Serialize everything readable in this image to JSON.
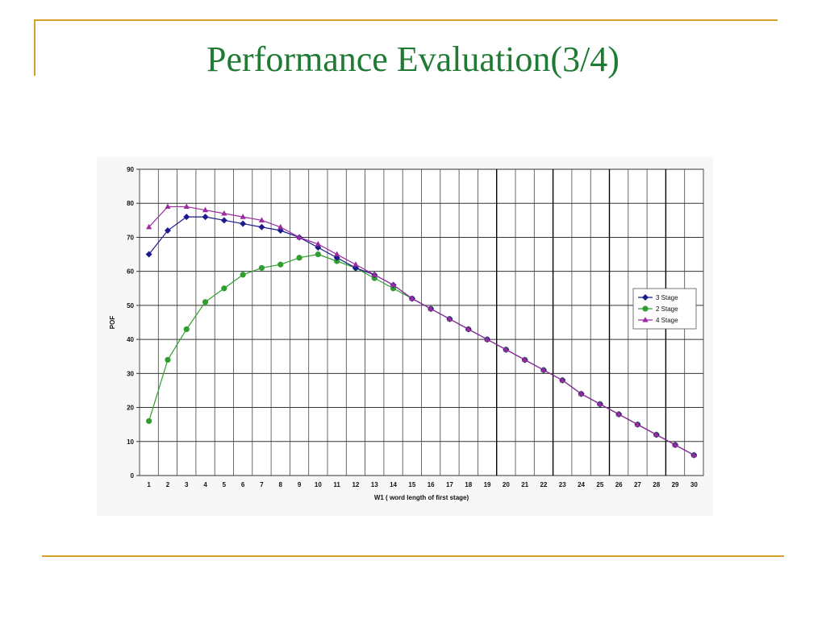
{
  "slide": {
    "title": "Performance Evaluation(3/4)",
    "accent_color": "#d6a128",
    "title_color": "#1f7a33"
  },
  "chart_data": {
    "type": "line",
    "title": "",
    "xlabel": "W1 ( word length of first stage)",
    "ylabel": "POF",
    "x": [
      1,
      2,
      3,
      4,
      5,
      6,
      7,
      8,
      9,
      10,
      11,
      12,
      13,
      14,
      15,
      16,
      17,
      18,
      19,
      20,
      21,
      22,
      23,
      24,
      25,
      26,
      27,
      28,
      29,
      30
    ],
    "xlim": [
      1,
      30
    ],
    "ylim": [
      0,
      90
    ],
    "yticks": [
      0,
      10,
      20,
      30,
      40,
      50,
      60,
      70,
      80,
      90
    ],
    "grid": true,
    "legend_position": "right",
    "series": [
      {
        "name": "3 Stage",
        "color": "#1a1a8c",
        "marker": "diamond",
        "values": [
          65,
          72,
          76,
          76,
          75,
          74,
          73,
          72,
          70,
          67,
          64,
          61,
          59,
          56,
          52,
          49,
          46,
          43,
          40,
          37,
          34,
          31,
          28,
          24,
          21,
          18,
          15,
          12,
          9,
          6
        ]
      },
      {
        "name": "2 Stage",
        "color": "#2e9e2e",
        "marker": "circle",
        "values": [
          16,
          34,
          43,
          51,
          55,
          59,
          61,
          62,
          64,
          65,
          63,
          61,
          58,
          55,
          52,
          49,
          46,
          43,
          40,
          37,
          34,
          31,
          28,
          24,
          21,
          18,
          15,
          12,
          9,
          6
        ]
      },
      {
        "name": "4 Stage",
        "color": "#9a2aa0",
        "marker": "triangle",
        "values": [
          73,
          79,
          79,
          78,
          77,
          76,
          75,
          73,
          70,
          68,
          65,
          62,
          59,
          56,
          52,
          49,
          46,
          43,
          40,
          37,
          34,
          31,
          28,
          24,
          21,
          18,
          15,
          12,
          9,
          6
        ]
      }
    ]
  }
}
